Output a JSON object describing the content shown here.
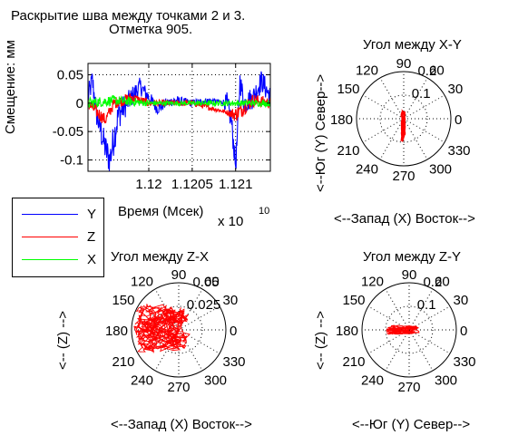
{
  "figure": {
    "title_line1": "Раскрытие шва между точками 2 и 3.",
    "title_line2": "Отметка 905."
  },
  "chart_data": [
    {
      "type": "line",
      "id": "timeseries",
      "title": "Раскрытие шва между точками 2 и 3. Отметка 905.",
      "xlabel": "Время (Мсек)",
      "x_exponent": "x 10",
      "x_exponent_power": "10",
      "ylabel": "Смещение: мм",
      "xlim": [
        1.1193,
        1.1214
      ],
      "ylim": [
        -0.12,
        0.07
      ],
      "xticks": [
        1.12,
        1.1205,
        1.121
      ],
      "xtick_labels": [
        "1.12",
        "1.1205",
        "1.121"
      ],
      "yticks": [
        0.05,
        0,
        -0.05,
        -0.1
      ],
      "ytick_labels": [
        "0.05",
        "0",
        "-0.05",
        "-0.1"
      ],
      "grid": true,
      "legend": {
        "placement": "left, below the time plot",
        "entries": [
          {
            "name": "Y",
            "color": "#0000ff"
          },
          {
            "name": "Z",
            "color": "#ff0000"
          },
          {
            "name": "X",
            "color": "#00ff00"
          }
        ]
      },
      "series": [
        {
          "name": "Y",
          "color": "#0000ff",
          "anchors": [
            [
              1.1193,
              0.01
            ],
            [
              1.11935,
              0.04
            ],
            [
              1.1194,
              -0.02
            ],
            [
              1.11945,
              -0.05
            ],
            [
              1.1195,
              -0.08
            ],
            [
              1.11955,
              -0.1
            ],
            [
              1.1196,
              -0.06
            ],
            [
              1.11965,
              -0.02
            ],
            [
              1.1197,
              -0.01
            ],
            [
              1.1198,
              0.01
            ],
            [
              1.1199,
              0.03
            ],
            [
              1.12,
              0.01
            ],
            [
              1.1201,
              -0.01
            ],
            [
              1.1202,
              0.0
            ],
            [
              1.1203,
              0.005
            ],
            [
              1.1205,
              0.0
            ],
            [
              1.1207,
              0.005
            ],
            [
              1.1209,
              0.0
            ],
            [
              1.12095,
              -0.03
            ],
            [
              1.121,
              -0.11
            ],
            [
              1.12102,
              -0.06
            ],
            [
              1.12105,
              0.04
            ],
            [
              1.1211,
              0.0
            ],
            [
              1.1212,
              0.01
            ],
            [
              1.1213,
              0.04
            ],
            [
              1.1214,
              0.01
            ]
          ],
          "noise_amplitude": [
            [
              1.1193,
              0.02
            ],
            [
              1.1196,
              0.03
            ],
            [
              1.11975,
              0.02
            ],
            [
              1.1201,
              0.01
            ],
            [
              1.12085,
              0.004
            ],
            [
              1.1209,
              0.02
            ],
            [
              1.1212,
              0.02
            ],
            [
              1.1214,
              0.02
            ]
          ]
        },
        {
          "name": "Z",
          "color": "#ff0000",
          "anchors": [
            [
              1.1193,
              0.0
            ],
            [
              1.1195,
              -0.03
            ],
            [
              1.1196,
              0.0
            ],
            [
              1.1198,
              0.01
            ],
            [
              1.12,
              0.0
            ],
            [
              1.1205,
              0.0
            ],
            [
              1.121,
              -0.02
            ],
            [
              1.1212,
              0.005
            ],
            [
              1.1214,
              0.0
            ]
          ],
          "noise_amplitude": [
            [
              1.1193,
              0.012
            ],
            [
              1.1197,
              0.01
            ],
            [
              1.1201,
              0.006
            ],
            [
              1.1209,
              0.004
            ],
            [
              1.121,
              0.014
            ],
            [
              1.1214,
              0.01
            ]
          ]
        },
        {
          "name": "X",
          "color": "#00ff00",
          "anchors": [
            [
              1.1193,
              0.0
            ],
            [
              1.1196,
              0.005
            ],
            [
              1.12,
              0.0
            ],
            [
              1.1205,
              0.0
            ],
            [
              1.121,
              0.0
            ],
            [
              1.1214,
              0.0
            ]
          ],
          "noise_amplitude": [
            [
              1.1193,
              0.01
            ],
            [
              1.1198,
              0.008
            ],
            [
              1.1201,
              0.004
            ],
            [
              1.1214,
              0.006
            ]
          ]
        }
      ]
    },
    {
      "type": "polar",
      "id": "polar_xy",
      "title": "Угол между X-Y",
      "xlabel": "<--Запад (X) Восток-->",
      "ylabel": "<--Юг (Y) Север-->",
      "rmax": 0.2,
      "ring_labels": [
        "0.1",
        "0.2"
      ],
      "angle_labels": [
        "30",
        "60",
        "90",
        "120",
        "150",
        "180",
        "210",
        "240",
        "270",
        "300",
        "330",
        "0"
      ],
      "series": {
        "name": "Y vs X",
        "color": "#ff0000",
        "shape": "narrow vertical loop",
        "x_range": [
          -0.012,
          0.008
        ],
        "y_range": [
          -0.1,
          0.045
        ]
      }
    },
    {
      "type": "polar",
      "id": "polar_zx",
      "title": "Угол между Z-X",
      "xlabel": "<--Запад (X) Восток-->",
      "ylabel": "<-- (Z) -->",
      "rmax": 0.05,
      "ring_labels": [
        "0.025",
        "0.05"
      ],
      "angle_labels": [
        "30",
        "60",
        "90",
        "120",
        "150",
        "180",
        "210",
        "240",
        "270",
        "300",
        "330",
        "0"
      ],
      "series": {
        "name": "Z vs X",
        "color": "#ff0000",
        "shape": "dense irregular cloud",
        "x_range": [
          -0.048,
          0.012
        ],
        "y_range": [
          -0.025,
          0.028
        ]
      }
    },
    {
      "type": "polar",
      "id": "polar_zy",
      "title": "Угол между Z-Y",
      "xlabel": "<--Юг (Y) Север-->",
      "ylabel": "<-- (Z) -->",
      "rmax": 0.2,
      "ring_labels": [
        "0.1",
        "0.2"
      ],
      "angle_labels": [
        "30",
        "60",
        "90",
        "120",
        "150",
        "180",
        "210",
        "240",
        "270",
        "300",
        "330",
        "0"
      ],
      "series": {
        "name": "Z vs Y",
        "color": "#ff0000",
        "shape": "flat horizontal band",
        "x_range": [
          -0.1,
          0.045
        ],
        "y_range": [
          -0.02,
          0.02
        ]
      }
    }
  ]
}
